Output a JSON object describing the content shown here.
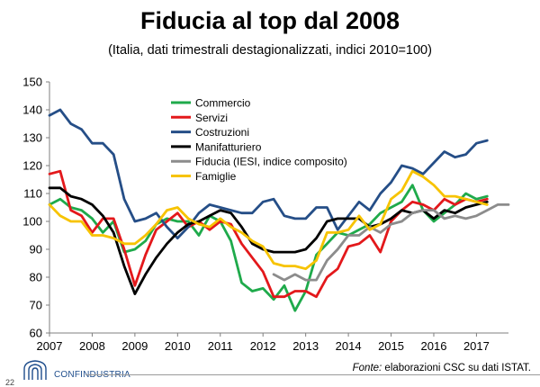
{
  "header": {
    "title": "Fiducia al top dal 2008",
    "subtitle": "(Italia, dati trimestrali destagionalizzati, indici 2010=100)"
  },
  "footer": {
    "brand": "CONFINDUSTRIA",
    "source_prefix": "Fonte:",
    "source_text": " elaborazioni CSC su dati ISTAT.",
    "page_number": "22"
  },
  "chart_data": {
    "type": "line",
    "title": "Fiducia al top dal 2008",
    "subtitle": "(Italia, dati trimestrali destagionalizzati, indici 2010=100)",
    "xlabel": "",
    "ylabel": "",
    "xlim": [
      2007,
      2017.75
    ],
    "ylim": [
      60,
      150
    ],
    "yticks": [
      60,
      70,
      80,
      90,
      100,
      110,
      120,
      130,
      140,
      150
    ],
    "xticks": [
      "2007",
      "2008",
      "2009",
      "2010",
      "2011",
      "2012",
      "2013",
      "2014",
      "2015",
      "2016",
      "2017"
    ],
    "grid": false,
    "legend_position": "top-center",
    "x_start": 2007,
    "x_step": 0.25,
    "series": [
      {
        "name": "Commercio",
        "color": "#1faa4b",
        "start": 2007,
        "values": [
          106,
          108,
          105,
          104,
          101,
          96,
          100,
          89,
          90,
          93,
          99,
          101,
          100,
          100,
          95,
          102,
          100,
          93,
          78,
          75,
          76,
          72,
          77,
          68,
          75,
          88,
          92,
          96,
          95,
          97,
          99,
          103,
          105,
          107,
          113,
          104,
          100,
          103,
          106,
          110,
          108,
          109
        ]
      },
      {
        "name": "Servizi",
        "color": "#e3181b",
        "start": 2007,
        "values": [
          117,
          118,
          104,
          102,
          96,
          101,
          101,
          90,
          77,
          88,
          97,
          100,
          103,
          98,
          100,
          97,
          100,
          99,
          92,
          87,
          82,
          73,
          73,
          75,
          75,
          73,
          80,
          83,
          91,
          92,
          95,
          89,
          100,
          104,
          107,
          106,
          104,
          108,
          106,
          108,
          107,
          108
        ]
      },
      {
        "name": "Costruzioni",
        "color": "#254e87",
        "start": 2007,
        "values": [
          138,
          140,
          135,
          133,
          128,
          128,
          124,
          108,
          100,
          101,
          103,
          98,
          94,
          98,
          103,
          106,
          105,
          104,
          103,
          103,
          107,
          108,
          102,
          101,
          101,
          105,
          105,
          97,
          102,
          107,
          104,
          110,
          114,
          120,
          119,
          117,
          121,
          125,
          123,
          124,
          128,
          129
        ]
      },
      {
        "name": "Manifatturiero",
        "color": "#000000",
        "start": 2007,
        "values": [
          112,
          112,
          109,
          108,
          106,
          102,
          96,
          84,
          74,
          81,
          87,
          92,
          96,
          99,
          100,
          102,
          104,
          103,
          98,
          92,
          90,
          89,
          89,
          89,
          90,
          94,
          100,
          101,
          101,
          101,
          98,
          99,
          101,
          104,
          103,
          104,
          101,
          104,
          103,
          105,
          106,
          107
        ]
      },
      {
        "name": "Fiducia (IESI, indice composito)",
        "color": "#8c8c8c",
        "start": 2012.25,
        "values": [
          81,
          79,
          81,
          79,
          79,
          86,
          90,
          95,
          95,
          98,
          96,
          99,
          100,
          103,
          104,
          104,
          101,
          102,
          101,
          102,
          104,
          106,
          106
        ]
      },
      {
        "name": "Famiglie",
        "color": "#f7c300",
        "start": 2007,
        "values": [
          106,
          102,
          100,
          100,
          95,
          95,
          94,
          92,
          92,
          95,
          99,
          104,
          105,
          101,
          99,
          98,
          101,
          98,
          96,
          93,
          91,
          85,
          84,
          84,
          83,
          86,
          96,
          96,
          97,
          102,
          97,
          99,
          108,
          111,
          118,
          116,
          113,
          109,
          109,
          108,
          107,
          106
        ]
      }
    ]
  }
}
